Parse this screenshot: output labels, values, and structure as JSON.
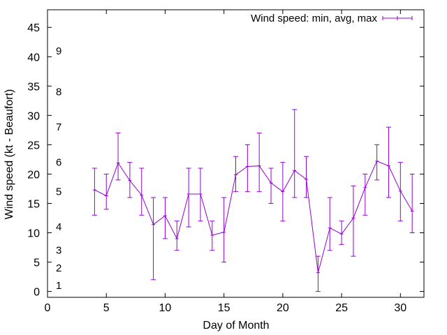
{
  "chart_data": {
    "type": "line",
    "title": "",
    "xlabel": "Day of Month",
    "ylabel": "Wind speed (kt - Beaufort)",
    "xlim": [
      0,
      32
    ],
    "ylim": [
      -1,
      48
    ],
    "xticks": [
      "0",
      "5",
      "10",
      "15",
      "20",
      "25",
      "30"
    ],
    "yticks": [
      "0",
      "5",
      "10",
      "15",
      "20",
      "25",
      "30",
      "35",
      "40",
      "45"
    ],
    "beaufort_labels": [
      {
        "label": "1",
        "value": 1
      },
      {
        "label": "2",
        "value": 4
      },
      {
        "label": "3",
        "value": 7
      },
      {
        "label": "4",
        "value": 11
      },
      {
        "label": "5",
        "value": 17
      },
      {
        "label": "6",
        "value": 22
      },
      {
        "label": "7",
        "value": 28
      },
      {
        "label": "8",
        "value": 34
      },
      {
        "label": "9",
        "value": 41
      }
    ],
    "grid": false,
    "legend_position": "top-right",
    "series": [
      {
        "name": "Wind speed: min, avg, max",
        "color": "#9400d3",
        "x": [
          4,
          5,
          6,
          7,
          8,
          9,
          10,
          11,
          12,
          13,
          14,
          15,
          16,
          17,
          18,
          19,
          20,
          21,
          22,
          23,
          24,
          25,
          26,
          27,
          28,
          29,
          30,
          31
        ],
        "avg": [
          17.3,
          16.3,
          21.9,
          18.9,
          16.4,
          11.4,
          12.9,
          9.0,
          16.6,
          16.6,
          9.6,
          10.1,
          19.9,
          21.3,
          21.4,
          18.5,
          17.0,
          20.6,
          19.1,
          3.2,
          10.8,
          9.8,
          12.5,
          17.7,
          22.2,
          21.4,
          17.1,
          13.7
        ],
        "min": [
          13,
          14,
          19,
          16,
          13,
          2,
          9,
          7,
          11,
          12,
          7,
          5,
          17,
          17,
          17,
          15,
          12,
          16,
          16,
          0,
          7,
          8,
          6,
          13,
          19,
          16,
          12,
          10
        ],
        "max": [
          21,
          20,
          27,
          22,
          21,
          16,
          16,
          12,
          21,
          21,
          12,
          16,
          23,
          25,
          27,
          21,
          22,
          31,
          23,
          6,
          16,
          12,
          18,
          20,
          25,
          28,
          22,
          20
        ]
      }
    ]
  }
}
